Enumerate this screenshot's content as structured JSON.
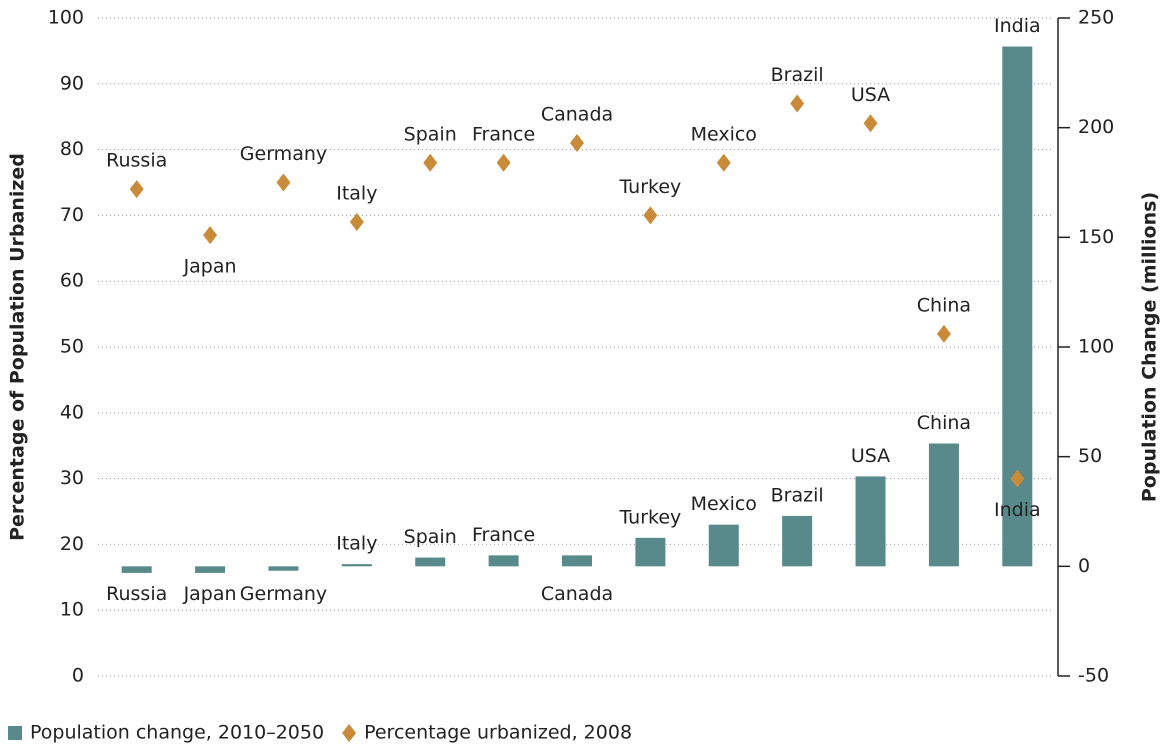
{
  "chart_data": {
    "type": "bar",
    "categories": [
      "Russia",
      "Japan",
      "Germany",
      "Italy",
      "Spain",
      "France",
      "Canada",
      "Turkey",
      "Mexico",
      "Brazil",
      "USA",
      "China",
      "India"
    ],
    "series": [
      {
        "name": "Population change, 2010–2050",
        "type": "bar",
        "axis": "y2",
        "color": "#588a8b",
        "values": [
          -3,
          -3,
          -2,
          1,
          4,
          5,
          5,
          13,
          19,
          23,
          41,
          56,
          237
        ]
      },
      {
        "name": "Percentage urbanized, 2008",
        "type": "scatter",
        "axis": "y",
        "color": "#c98b3a",
        "values": [
          74,
          67,
          75,
          69,
          78,
          78,
          81,
          70,
          78,
          87,
          84,
          52,
          30
        ]
      }
    ],
    "ylabel": "Percentage of Population Urbanized",
    "y2label": "Population Change (millions)",
    "ylim": [
      0,
      100
    ],
    "yticks": [
      0,
      10,
      20,
      30,
      40,
      50,
      60,
      70,
      80,
      90,
      100
    ],
    "y2lim": [
      -50,
      250
    ],
    "y2ticks": [
      -50,
      0,
      50,
      100,
      150,
      200,
      250
    ],
    "grid": true,
    "legend": "bottom-left"
  }
}
